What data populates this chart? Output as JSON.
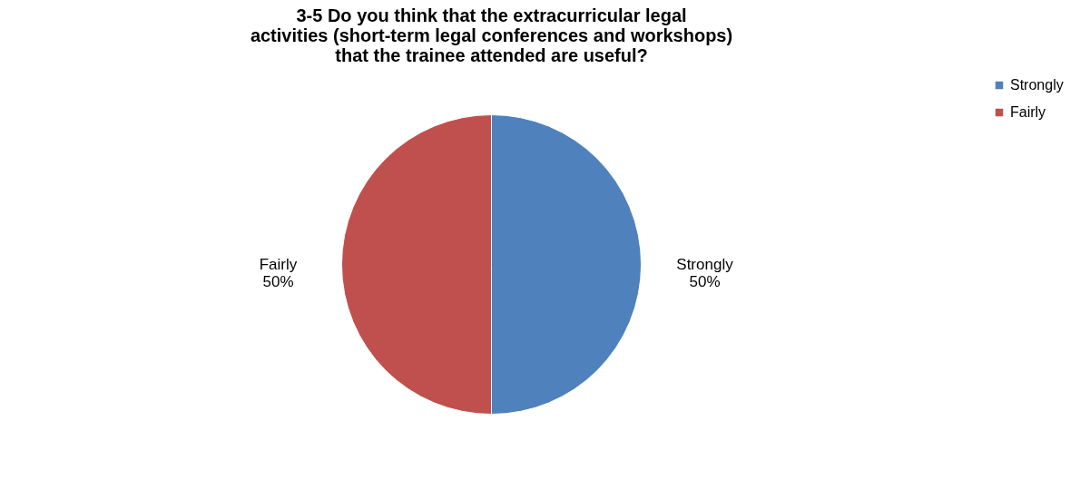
{
  "chart_data": {
    "type": "pie",
    "title": "3-5 Do you think that the extracurricular legal activities (short-term legal conferences and workshops) that the trainee attended are useful?",
    "categories": [
      "Strongly",
      "Fairly"
    ],
    "values": [
      50,
      50
    ],
    "colors": [
      "#4f81bd",
      "#c0504d"
    ],
    "value_labels": [
      "50%",
      "50%"
    ],
    "legend": "right"
  }
}
